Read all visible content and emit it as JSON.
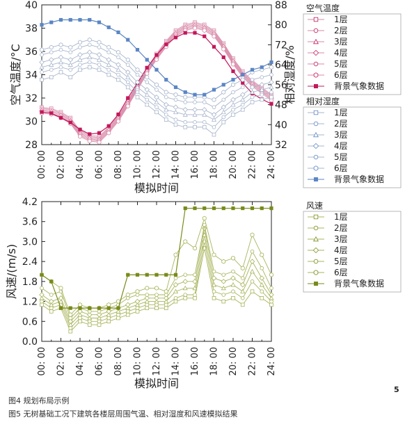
{
  "page": {
    "caption1": "图4  规划布局示例",
    "caption2": "图5  无树基础工况下建筑各楼层周围气温、相对湿度和风速模拟结果",
    "page_number": "5"
  },
  "colors": {
    "temperature": "#c2185b",
    "humidity": "#5b86c5",
    "wind": "#7a8a1a",
    "open_line_temp": "#d98aa8",
    "open_line_hum": "#a8b5cc",
    "open_line_wind": "#a8b45a"
  },
  "chart_data": [
    {
      "type": "line",
      "title": "",
      "xlabel": "模拟时间",
      "ylabel": "空气温度/°C",
      "y2label": "相对湿度/%",
      "x": [
        "00:00",
        "01:00",
        "02:00",
        "03:00",
        "04:00",
        "05:00",
        "06:00",
        "07:00",
        "08:00",
        "09:00",
        "10:00",
        "11:00",
        "12:00",
        "13:00",
        "14:00",
        "15:00",
        "16:00",
        "17:00",
        "18:00",
        "19:00",
        "20:00",
        "21:00",
        "22:00",
        "23:00",
        "24:00"
      ],
      "xticks": [
        "00: 00",
        "02: 00",
        "04: 00",
        "06: 00",
        "08: 00",
        "10: 00",
        "12: 00",
        "14: 00",
        "16: 00",
        "18: 00",
        "20: 00",
        "22: 00",
        "24: 00"
      ],
      "ylim": [
        28,
        40
      ],
      "yticks": [
        28,
        30,
        32,
        34,
        36,
        38,
        40
      ],
      "y2lim": [
        32,
        88
      ],
      "y2ticks": [
        32,
        40,
        48,
        56,
        64,
        72,
        80,
        88
      ],
      "legend_groups": [
        {
          "title": "空气温度",
          "axis": "left",
          "color_key": "temperature",
          "entries": [
            "1层",
            "2层",
            "3层",
            "4层",
            "5层",
            "6层",
            "背景气象数据"
          ]
        },
        {
          "title": "相对湿度",
          "axis": "right",
          "color_key": "humidity",
          "entries": [
            "1层",
            "2层",
            "3层",
            "4层",
            "5层",
            "6层",
            "背景气象数据"
          ]
        }
      ],
      "series": [
        {
          "name": "1层",
          "group": "空气温度",
          "axis": "left",
          "values": [
            31.2,
            31.1,
            30.8,
            30.3,
            29.2,
            28.8,
            28.7,
            29.5,
            30.5,
            31.8,
            33.2,
            34.6,
            35.8,
            36.9,
            37.8,
            38.3,
            38.5,
            38.3,
            37.8,
            36.7,
            35.4,
            34.3,
            33.5,
            32.9,
            32.3
          ]
        },
        {
          "name": "2层",
          "group": "空气温度",
          "axis": "left",
          "values": [
            31.1,
            31.0,
            30.7,
            30.2,
            29.1,
            28.7,
            28.6,
            29.4,
            30.4,
            31.7,
            33.1,
            34.5,
            35.7,
            36.8,
            37.7,
            38.2,
            38.4,
            38.2,
            37.7,
            36.6,
            35.3,
            34.2,
            33.4,
            32.8,
            32.2
          ]
        },
        {
          "name": "3层",
          "group": "空气温度",
          "axis": "left",
          "values": [
            31.0,
            30.9,
            30.6,
            30.1,
            29.0,
            28.6,
            28.5,
            29.3,
            30.3,
            31.6,
            33.0,
            34.4,
            35.6,
            36.7,
            37.6,
            38.1,
            38.3,
            38.1,
            37.6,
            36.5,
            35.2,
            34.1,
            33.3,
            32.7,
            32.1
          ]
        },
        {
          "name": "4层",
          "group": "空气温度",
          "axis": "left",
          "values": [
            30.9,
            30.8,
            30.5,
            30.0,
            28.9,
            28.5,
            28.4,
            29.2,
            30.2,
            31.5,
            32.9,
            34.3,
            35.5,
            36.6,
            37.5,
            38.0,
            38.2,
            38.0,
            37.5,
            36.4,
            35.1,
            34.0,
            33.2,
            32.6,
            32.0
          ]
        },
        {
          "name": "5层",
          "group": "空气温度",
          "axis": "left",
          "values": [
            30.8,
            30.7,
            30.4,
            29.9,
            28.8,
            28.4,
            28.3,
            29.1,
            30.1,
            31.4,
            32.8,
            34.2,
            35.4,
            36.5,
            37.4,
            37.9,
            38.1,
            37.9,
            37.4,
            36.3,
            35.0,
            33.9,
            33.1,
            32.5,
            31.9
          ]
        },
        {
          "name": "6层",
          "group": "空气温度",
          "axis": "left",
          "values": [
            30.7,
            30.6,
            30.3,
            29.8,
            28.7,
            28.3,
            28.2,
            29.0,
            30.0,
            31.3,
            32.7,
            34.1,
            35.3,
            36.4,
            37.3,
            37.8,
            38.0,
            37.8,
            37.3,
            36.2,
            34.9,
            33.8,
            33.0,
            32.4,
            31.8
          ]
        },
        {
          "name": "背景气象数据",
          "group": "空气温度",
          "axis": "left",
          "values": [
            30.8,
            30.7,
            30.3,
            29.9,
            29.3,
            28.9,
            29.0,
            29.6,
            30.6,
            32.0,
            33.3,
            34.6,
            35.7,
            36.6,
            37.2,
            37.6,
            37.6,
            37.3,
            36.4,
            35.5,
            34.3,
            33.3,
            32.4,
            31.9,
            31.5
          ]
        },
        {
          "name": "1层",
          "group": "相对湿度",
          "axis": "right",
          "values": [
            58,
            59,
            61,
            59,
            62,
            63,
            62,
            60,
            58,
            55,
            51,
            48,
            45,
            42,
            40,
            39,
            39,
            39,
            36,
            41,
            44,
            46,
            49,
            50,
            51
          ]
        },
        {
          "name": "2层",
          "group": "相对湿度",
          "axis": "right",
          "values": [
            61,
            62,
            63,
            62,
            64,
            65,
            64,
            62,
            60,
            57,
            53,
            50,
            47,
            44,
            42,
            41,
            41,
            41,
            39,
            43,
            46,
            48,
            51,
            52,
            53
          ]
        },
        {
          "name": "3层",
          "group": "相对湿度",
          "axis": "right",
          "values": [
            63,
            64,
            65,
            64,
            66,
            67,
            66,
            64,
            62,
            59,
            55,
            52,
            49,
            46,
            45,
            44,
            44,
            44,
            42,
            45,
            48,
            50,
            53,
            54,
            55
          ]
        },
        {
          "name": "4层",
          "group": "相对湿度",
          "axis": "right",
          "values": [
            65,
            66,
            67,
            66,
            68,
            69,
            68,
            66,
            64,
            61,
            57,
            54,
            51,
            48,
            47,
            46,
            46,
            46,
            44,
            47,
            50,
            52,
            55,
            56,
            57
          ]
        },
        {
          "name": "5层",
          "group": "相对湿度",
          "axis": "right",
          "values": [
            68,
            69,
            70,
            69,
            71,
            72,
            71,
            69,
            67,
            64,
            60,
            57,
            54,
            51,
            50,
            49,
            49,
            49,
            47,
            50,
            53,
            55,
            58,
            59,
            60
          ]
        },
        {
          "name": "6层",
          "group": "相对湿度",
          "axis": "right",
          "values": [
            70,
            71,
            72,
            71,
            73,
            74,
            73,
            71,
            69,
            66,
            62,
            59,
            56,
            53,
            52,
            51,
            51,
            51,
            50,
            53,
            56,
            58,
            61,
            62,
            63
          ]
        },
        {
          "name": "背景气象数据",
          "group": "相对湿度",
          "axis": "right",
          "values": [
            80,
            81,
            82,
            82,
            82,
            82,
            81,
            79,
            77,
            74,
            70,
            66,
            62,
            58,
            55,
            53,
            52,
            52,
            54,
            56,
            58,
            60,
            62,
            63,
            65
          ]
        }
      ]
    },
    {
      "type": "line",
      "title": "",
      "xlabel": "模拟时间",
      "ylabel": "风速/(m/s)",
      "x": [
        "00:00",
        "01:00",
        "02:00",
        "03:00",
        "04:00",
        "05:00",
        "06:00",
        "07:00",
        "08:00",
        "09:00",
        "10:00",
        "11:00",
        "12:00",
        "13:00",
        "14:00",
        "15:00",
        "16:00",
        "17:00",
        "18:00",
        "19:00",
        "20:00",
        "21:00",
        "22:00",
        "23:00",
        "24:00"
      ],
      "xticks": [
        "00: 00",
        "02: 00",
        "04: 00",
        "06: 00",
        "08: 00",
        "10: 00",
        "12: 00",
        "14: 00",
        "16: 00",
        "18: 00",
        "20: 00",
        "22: 00",
        "24: 00"
      ],
      "ylim": [
        0,
        4.2
      ],
      "yticks": [
        "0.0",
        "0.6",
        "1.2",
        "1.8",
        "2.4",
        "3.0",
        "3.6",
        "4.2"
      ],
      "legend_groups": [
        {
          "title": "风速",
          "axis": "left",
          "color_key": "wind",
          "entries": [
            "1层",
            "2层",
            "3层",
            "4层",
            "5层",
            "6层",
            "背景气象数据"
          ]
        }
      ],
      "series": [
        {
          "name": "1层",
          "values": [
            1.1,
            0.9,
            1.0,
            0.3,
            0.6,
            0.5,
            0.5,
            0.6,
            0.7,
            0.8,
            0.9,
            1.0,
            1.0,
            1.0,
            1.2,
            1.3,
            1.3,
            2.8,
            1.3,
            1.2,
            1.3,
            1.1,
            1.5,
            1.3,
            1.1
          ]
        },
        {
          "name": "2层",
          "values": [
            1.2,
            1.0,
            1.1,
            0.4,
            0.7,
            0.6,
            0.6,
            0.7,
            0.8,
            0.9,
            1.0,
            1.1,
            1.1,
            1.1,
            1.3,
            1.4,
            1.4,
            3.0,
            1.5,
            1.4,
            1.5,
            1.3,
            1.8,
            1.5,
            1.2
          ]
        },
        {
          "name": "3层",
          "values": [
            1.3,
            1.1,
            1.2,
            0.5,
            0.8,
            0.7,
            0.7,
            0.8,
            0.9,
            1.0,
            1.1,
            1.2,
            1.2,
            1.2,
            1.5,
            1.6,
            1.6,
            3.2,
            1.7,
            1.6,
            1.7,
            1.5,
            2.1,
            1.7,
            1.3
          ]
        },
        {
          "name": "4层",
          "values": [
            1.4,
            1.2,
            1.3,
            0.6,
            0.9,
            0.8,
            0.8,
            0.9,
            1.0,
            1.1,
            1.2,
            1.3,
            1.3,
            1.3,
            1.7,
            1.8,
            1.8,
            3.4,
            1.9,
            1.8,
            1.9,
            1.7,
            2.4,
            1.9,
            1.4
          ]
        },
        {
          "name": "5层",
          "values": [
            1.6,
            1.4,
            1.5,
            0.7,
            1.0,
            0.9,
            0.9,
            1.0,
            1.1,
            1.3,
            1.4,
            1.4,
            1.4,
            1.4,
            1.9,
            2.0,
            2.0,
            3.5,
            2.1,
            2.0,
            2.1,
            1.9,
            2.7,
            2.2,
            1.6
          ]
        },
        {
          "name": "6层",
          "values": [
            2.0,
            1.8,
            1.6,
            0.8,
            1.1,
            1.0,
            1.0,
            1.1,
            1.2,
            1.4,
            1.5,
            1.6,
            1.6,
            1.5,
            2.6,
            3.0,
            2.8,
            3.7,
            2.6,
            2.4,
            2.5,
            2.2,
            3.2,
            2.6,
            2.0
          ]
        },
        {
          "name": "背景气象数据",
          "values": [
            2.0,
            1.8,
            1.0,
            1.0,
            1.0,
            1.0,
            1.0,
            1.0,
            1.0,
            2.0,
            2.0,
            2.0,
            2.0,
            2.0,
            2.0,
            4.0,
            4.0,
            4.0,
            4.0,
            4.0,
            4.0,
            4.0,
            4.0,
            4.0,
            4.0
          ]
        }
      ]
    }
  ]
}
